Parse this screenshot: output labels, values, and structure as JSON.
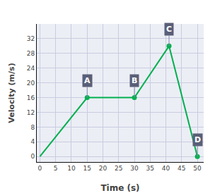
{
  "chart_data": {
    "type": "line",
    "x": [
      0,
      15,
      30,
      41,
      50
    ],
    "values": [
      0,
      16,
      16,
      30,
      0
    ],
    "color": "#00b050",
    "x_label": "Time (s)",
    "y_label": "Velocity (m/s)",
    "xlim": [
      -1,
      52
    ],
    "ylim": [
      -1.5,
      36
    ],
    "xticks": [
      0,
      5,
      10,
      15,
      20,
      25,
      30,
      35,
      40,
      45,
      50
    ],
    "yticks": [
      0,
      4,
      8,
      12,
      16,
      20,
      24,
      28,
      32
    ],
    "grid": true,
    "annotations": [
      {
        "text": "A",
        "x": 15,
        "y": 16
      },
      {
        "text": "B",
        "x": 30,
        "y": 16
      },
      {
        "text": "C",
        "x": 41,
        "y": 30
      },
      {
        "text": "D",
        "x": 50,
        "y": 0
      }
    ]
  }
}
